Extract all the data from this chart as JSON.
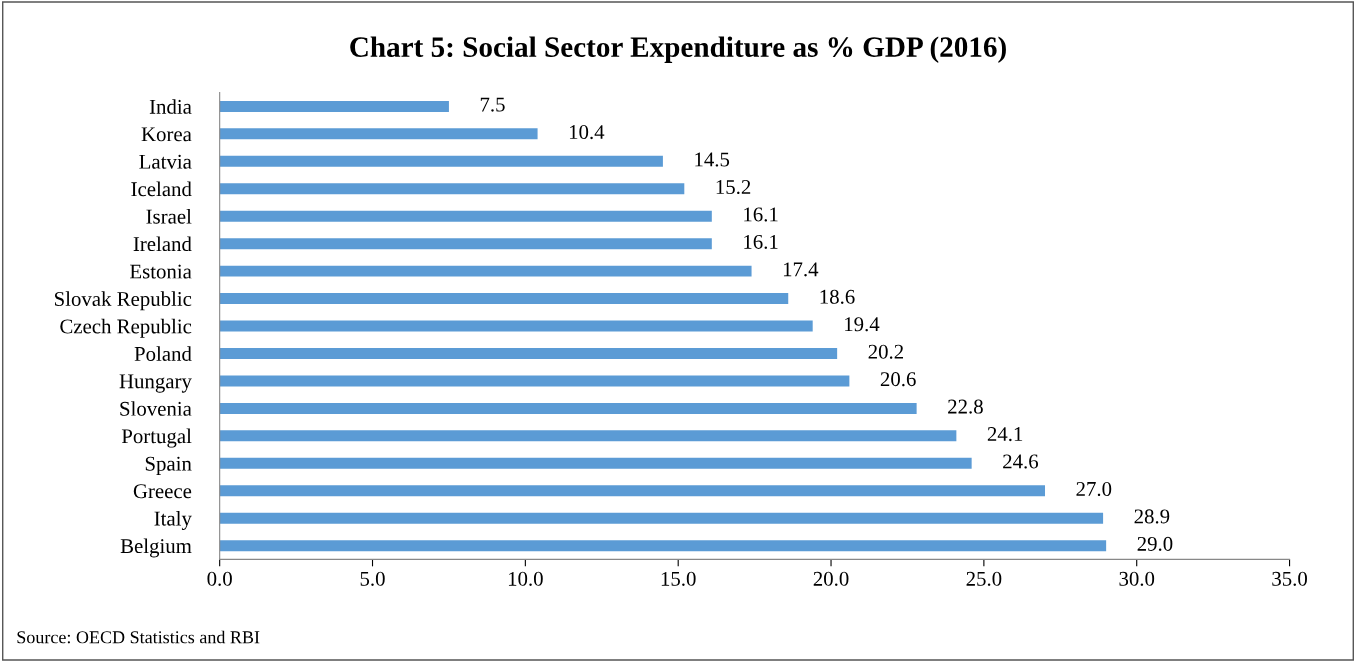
{
  "chart_data": {
    "type": "bar",
    "orientation": "horizontal",
    "title": "Chart 5: Social Sector Expenditure as % GDP (2016)",
    "categories": [
      "India",
      "Korea",
      "Latvia",
      "Iceland",
      "Israel",
      "Ireland",
      "Estonia",
      "Slovak Republic",
      "Czech Republic",
      "Poland",
      "Hungary",
      "Slovenia",
      "Portugal",
      "Spain",
      "Greece",
      "Italy",
      "Belgium"
    ],
    "values": [
      7.5,
      10.4,
      14.5,
      15.2,
      16.1,
      16.1,
      17.4,
      18.6,
      19.4,
      20.2,
      20.6,
      22.8,
      24.1,
      24.6,
      27.0,
      28.9,
      29.0
    ],
    "value_labels": [
      "7.5",
      "10.4",
      "14.5",
      "15.2",
      "16.1",
      "16.1",
      "17.4",
      "18.6",
      "19.4",
      "20.2",
      "20.6",
      "22.8",
      "24.1",
      "24.6",
      "27.0",
      "28.9",
      "29.0"
    ],
    "color": "#5b9bd5",
    "xlim": [
      0,
      35
    ],
    "xticks": [
      {
        "value": 0,
        "label": "0.0"
      },
      {
        "value": 5,
        "label": "5.0"
      },
      {
        "value": 10,
        "label": "10.0"
      },
      {
        "value": 15,
        "label": "15.0"
      },
      {
        "value": 20,
        "label": "20.0"
      },
      {
        "value": 25,
        "label": "25.0"
      },
      {
        "value": 30,
        "label": "30.0"
      },
      {
        "value": 35,
        "label": "35.0"
      }
    ],
    "grid": false,
    "legend": false,
    "annotations": [
      "Source: OECD Statistics and RBI"
    ]
  }
}
